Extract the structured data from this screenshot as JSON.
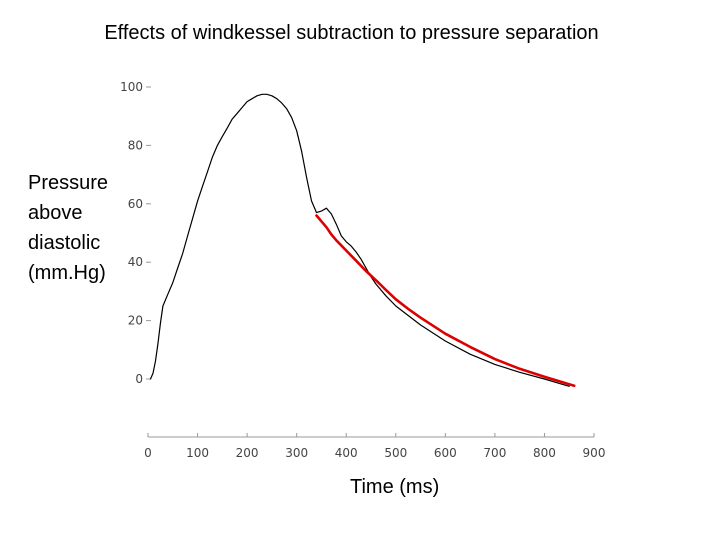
{
  "chart_data": {
    "type": "line",
    "title": "Effects of windkessel subtraction to pressure separation",
    "ylabel_lines": [
      "Pressure",
      "above",
      "diastolic",
      "(mm.Hg)"
    ],
    "xlabel": "Time (ms)",
    "xlim": [
      0,
      900
    ],
    "ylim": [
      0,
      100
    ],
    "xticks": [
      "0",
      "100",
      "200",
      "300",
      "400",
      "500",
      "600",
      "700",
      "800",
      "900"
    ],
    "yticks": [
      "0",
      "20",
      "40",
      "60",
      "80",
      "100"
    ],
    "grid": false,
    "series": [
      {
        "color": "#000000",
        "points": [
          [
            5,
            0
          ],
          [
            10,
            2
          ],
          [
            15,
            6
          ],
          [
            20,
            12
          ],
          [
            25,
            19
          ],
          [
            30,
            25
          ],
          [
            40,
            29
          ],
          [
            50,
            33
          ],
          [
            60,
            38
          ],
          [
            70,
            43
          ],
          [
            80,
            49
          ],
          [
            90,
            55
          ],
          [
            100,
            61
          ],
          [
            110,
            66
          ],
          [
            120,
            71
          ],
          [
            130,
            76
          ],
          [
            140,
            80
          ],
          [
            150,
            83
          ],
          [
            160,
            86
          ],
          [
            170,
            89
          ],
          [
            180,
            91
          ],
          [
            190,
            93
          ],
          [
            200,
            95
          ],
          [
            210,
            96
          ],
          [
            220,
            97
          ],
          [
            230,
            97.5
          ],
          [
            240,
            97.5
          ],
          [
            250,
            97
          ],
          [
            260,
            96
          ],
          [
            270,
            94.5
          ],
          [
            280,
            92.5
          ],
          [
            290,
            89.5
          ],
          [
            300,
            85
          ],
          [
            310,
            78
          ],
          [
            320,
            69
          ],
          [
            330,
            61
          ],
          [
            340,
            57
          ],
          [
            350,
            57.5
          ],
          [
            360,
            58.5
          ],
          [
            370,
            56.5
          ],
          [
            380,
            53
          ],
          [
            390,
            49
          ],
          [
            400,
            47
          ],
          [
            410,
            45.5
          ],
          [
            420,
            43.5
          ],
          [
            430,
            41
          ],
          [
            440,
            38
          ],
          [
            450,
            35
          ],
          [
            460,
            32.5
          ],
          [
            480,
            28.5
          ],
          [
            500,
            25
          ],
          [
            550,
            18.5
          ],
          [
            600,
            13
          ],
          [
            650,
            8.5
          ],
          [
            700,
            5
          ],
          [
            750,
            2.3
          ],
          [
            800,
            0
          ],
          [
            830,
            -1.5
          ],
          [
            850,
            -2.5
          ]
        ]
      },
      {
        "color": "#dd0000",
        "points": [
          [
            340,
            56
          ],
          [
            350,
            54
          ],
          [
            360,
            52
          ],
          [
            370,
            49.5
          ],
          [
            380,
            47.5
          ],
          [
            400,
            44
          ],
          [
            420,
            40.5
          ],
          [
            440,
            37
          ],
          [
            460,
            33.8
          ],
          [
            480,
            30.5
          ],
          [
            500,
            27.3
          ],
          [
            525,
            24
          ],
          [
            550,
            21
          ],
          [
            600,
            15.5
          ],
          [
            650,
            11
          ],
          [
            700,
            6.8
          ],
          [
            750,
            3.5
          ],
          [
            800,
            0.8
          ],
          [
            830,
            -0.8
          ],
          [
            860,
            -2.3
          ]
        ]
      }
    ]
  }
}
